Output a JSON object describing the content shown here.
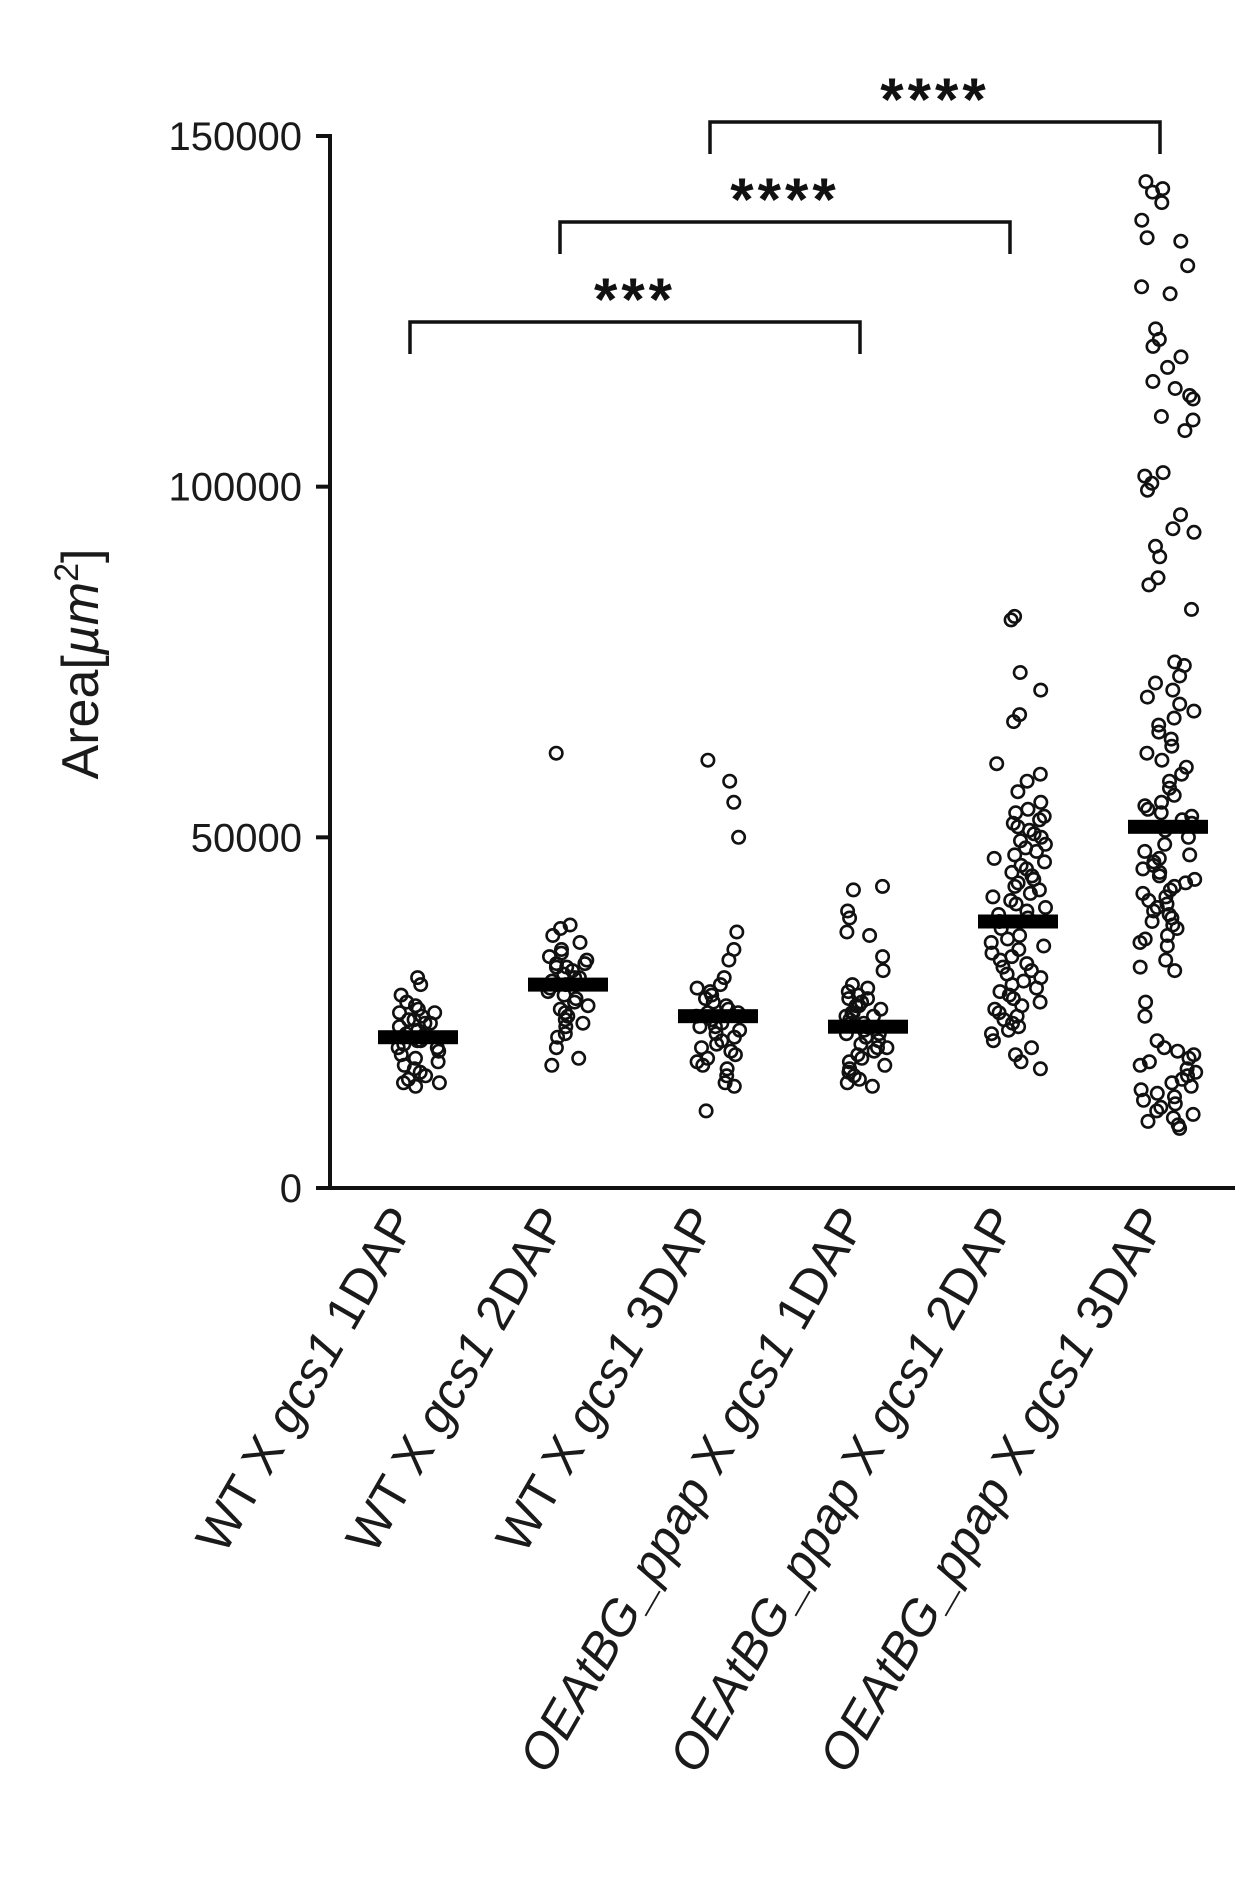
{
  "chart_data": {
    "type": "scatter",
    "ylabel": "Area[µm²]",
    "ylabel_parts": {
      "main": "Area[",
      "unit": "µm",
      "sup": "2",
      "close": "]"
    },
    "ylim": [
      0,
      150000
    ],
    "yticks": [
      0,
      50000,
      100000,
      150000
    ],
    "ytick_labels": [
      "0",
      "50000",
      "100000",
      "150000"
    ],
    "categories": [
      {
        "label": "WT X gcs1 1DAP",
        "parts": [
          "WT X ",
          "gcs1",
          " 1DAP"
        ]
      },
      {
        "label": "WT X gcs1 2DAP",
        "parts": [
          "WT X ",
          "gcs1",
          " 2DAP"
        ]
      },
      {
        "label": "WT X gcs1 3DAP",
        "parts": [
          "WT X ",
          "gcs1",
          " 3DAP"
        ]
      },
      {
        "label": "OEAtBG_ppap X gcs1 1DAP",
        "parts": [
          "OEAtBG_ppap",
          " X ",
          "gcs1",
          " 1DAP"
        ]
      },
      {
        "label": "OEAtBG_ppap X gcs1 2DAP",
        "parts": [
          "OEAtBG_ppap",
          " X ",
          "gcs1",
          " 2DAP"
        ]
      },
      {
        "label": "OEAtBG_ppap X gcs1 3DAP",
        "parts": [
          "OEAtBG_ppap",
          " X ",
          "gcs1",
          " 3DAP"
        ]
      }
    ],
    "groups": [
      {
        "mean": 21500,
        "values": [
          30000,
          29000,
          27500,
          26500,
          26000,
          25500,
          25000,
          25000,
          24500,
          24000,
          24000,
          23500,
          23500,
          23000,
          22500,
          22000,
          22000,
          21500,
          21000,
          21000,
          20500,
          20000,
          20000,
          19500,
          19000,
          18500,
          18000,
          17500,
          17000,
          16500,
          16000,
          15500,
          15000,
          15000,
          14500
        ]
      },
      {
        "mean": 29000,
        "values": [
          62000,
          37500,
          37000,
          36000,
          35000,
          34000,
          33500,
          33000,
          32500,
          32000,
          32000,
          31500,
          31500,
          31000,
          30500,
          30000,
          30000,
          29500,
          29000,
          29000,
          28500,
          28000,
          27500,
          27000,
          26500,
          26000,
          25500,
          25000,
          24500,
          24000,
          23500,
          23000,
          22000,
          21500,
          20000,
          18500,
          17500
        ]
      },
      {
        "mean": 24500,
        "values": [
          61000,
          58000,
          55000,
          50000,
          36500,
          34000,
          32500,
          30000,
          29000,
          28500,
          28000,
          27500,
          27000,
          26500,
          26000,
          25500,
          25000,
          25000,
          24500,
          24000,
          23500,
          23000,
          23000,
          22500,
          22000,
          21500,
          21000,
          20500,
          20000,
          19500,
          19000,
          18500,
          18000,
          17500,
          17000,
          16000,
          15000,
          14500,
          11000
        ]
      },
      {
        "mean": 23000,
        "values": [
          43000,
          42500,
          39500,
          38500,
          36500,
          36000,
          33000,
          31000,
          29000,
          28500,
          28000,
          27500,
          27000,
          27000,
          26500,
          26000,
          26000,
          25500,
          25000,
          25000,
          24500,
          24500,
          24000,
          23500,
          23500,
          23000,
          22500,
          22000,
          22000,
          21500,
          21000,
          20500,
          20000,
          20000,
          19500,
          19000,
          18500,
          18000,
          17500,
          17000,
          16500,
          16000,
          15500,
          15000,
          14500
        ]
      },
      {
        "mean": 38000,
        "values": [
          81500,
          81000,
          73500,
          71000,
          67500,
          66500,
          60500,
          59000,
          58000,
          56500,
          55000,
          54000,
          53500,
          53000,
          52500,
          52000,
          51500,
          51000,
          50500,
          50000,
          49500,
          49000,
          48500,
          48000,
          47500,
          47000,
          46500,
          46000,
          45500,
          45000,
          44500,
          44000,
          43500,
          43000,
          42500,
          42000,
          41500,
          41000,
          40500,
          40000,
          39500,
          39000,
          38500,
          38000,
          37000,
          36000,
          35500,
          35000,
          34500,
          34000,
          33500,
          33000,
          32500,
          32000,
          31500,
          31000,
          30500,
          30000,
          29500,
          29000,
          28500,
          28000,
          27500,
          27000,
          26500,
          26000,
          25500,
          25000,
          24500,
          24000,
          23500,
          23000,
          22500,
          22000,
          21000,
          20000,
          19000,
          18000,
          17000
        ]
      },
      {
        "mean": 51500,
        "values": [
          143500,
          142500,
          142000,
          140500,
          138000,
          135500,
          135000,
          131500,
          128500,
          127500,
          122500,
          121000,
          120000,
          118500,
          117000,
          115000,
          114000,
          113000,
          112500,
          110000,
          109500,
          108000,
          102000,
          101500,
          100500,
          99500,
          96000,
          94000,
          93500,
          91500,
          90000,
          87000,
          86000,
          82500,
          75000,
          74500,
          73000,
          72000,
          71000,
          70000,
          69000,
          68000,
          67000,
          66000,
          65000,
          64000,
          63000,
          62000,
          61000,
          60000,
          59000,
          58000,
          57000,
          56000,
          55000,
          54500,
          54000,
          53500,
          53000,
          52500,
          52000,
          51000,
          50000,
          49000,
          48000,
          47500,
          47000,
          46500,
          46000,
          45500,
          45000,
          44500,
          44000,
          43500,
          43000,
          42500,
          42000,
          41500,
          41000,
          40500,
          40000,
          39500,
          39000,
          38500,
          38000,
          37500,
          37000,
          36000,
          35500,
          35000,
          34500,
          32500,
          31500,
          31000,
          26500,
          24500,
          21000,
          20000,
          19500,
          19000,
          18500,
          18000,
          17500,
          17000,
          16500,
          16000,
          15500,
          15000,
          14500,
          14000,
          13500,
          13000,
          12500,
          12000,
          11500,
          11000,
          10500,
          10000,
          9500,
          9000,
          8500
        ]
      }
    ],
    "comparisons": [
      {
        "from": 0,
        "to": 3,
        "label": "***"
      },
      {
        "from": 1,
        "to": 4,
        "label": "****"
      },
      {
        "from": 2,
        "to": 5,
        "label": "****"
      }
    ],
    "grid": false,
    "legend": "none"
  }
}
